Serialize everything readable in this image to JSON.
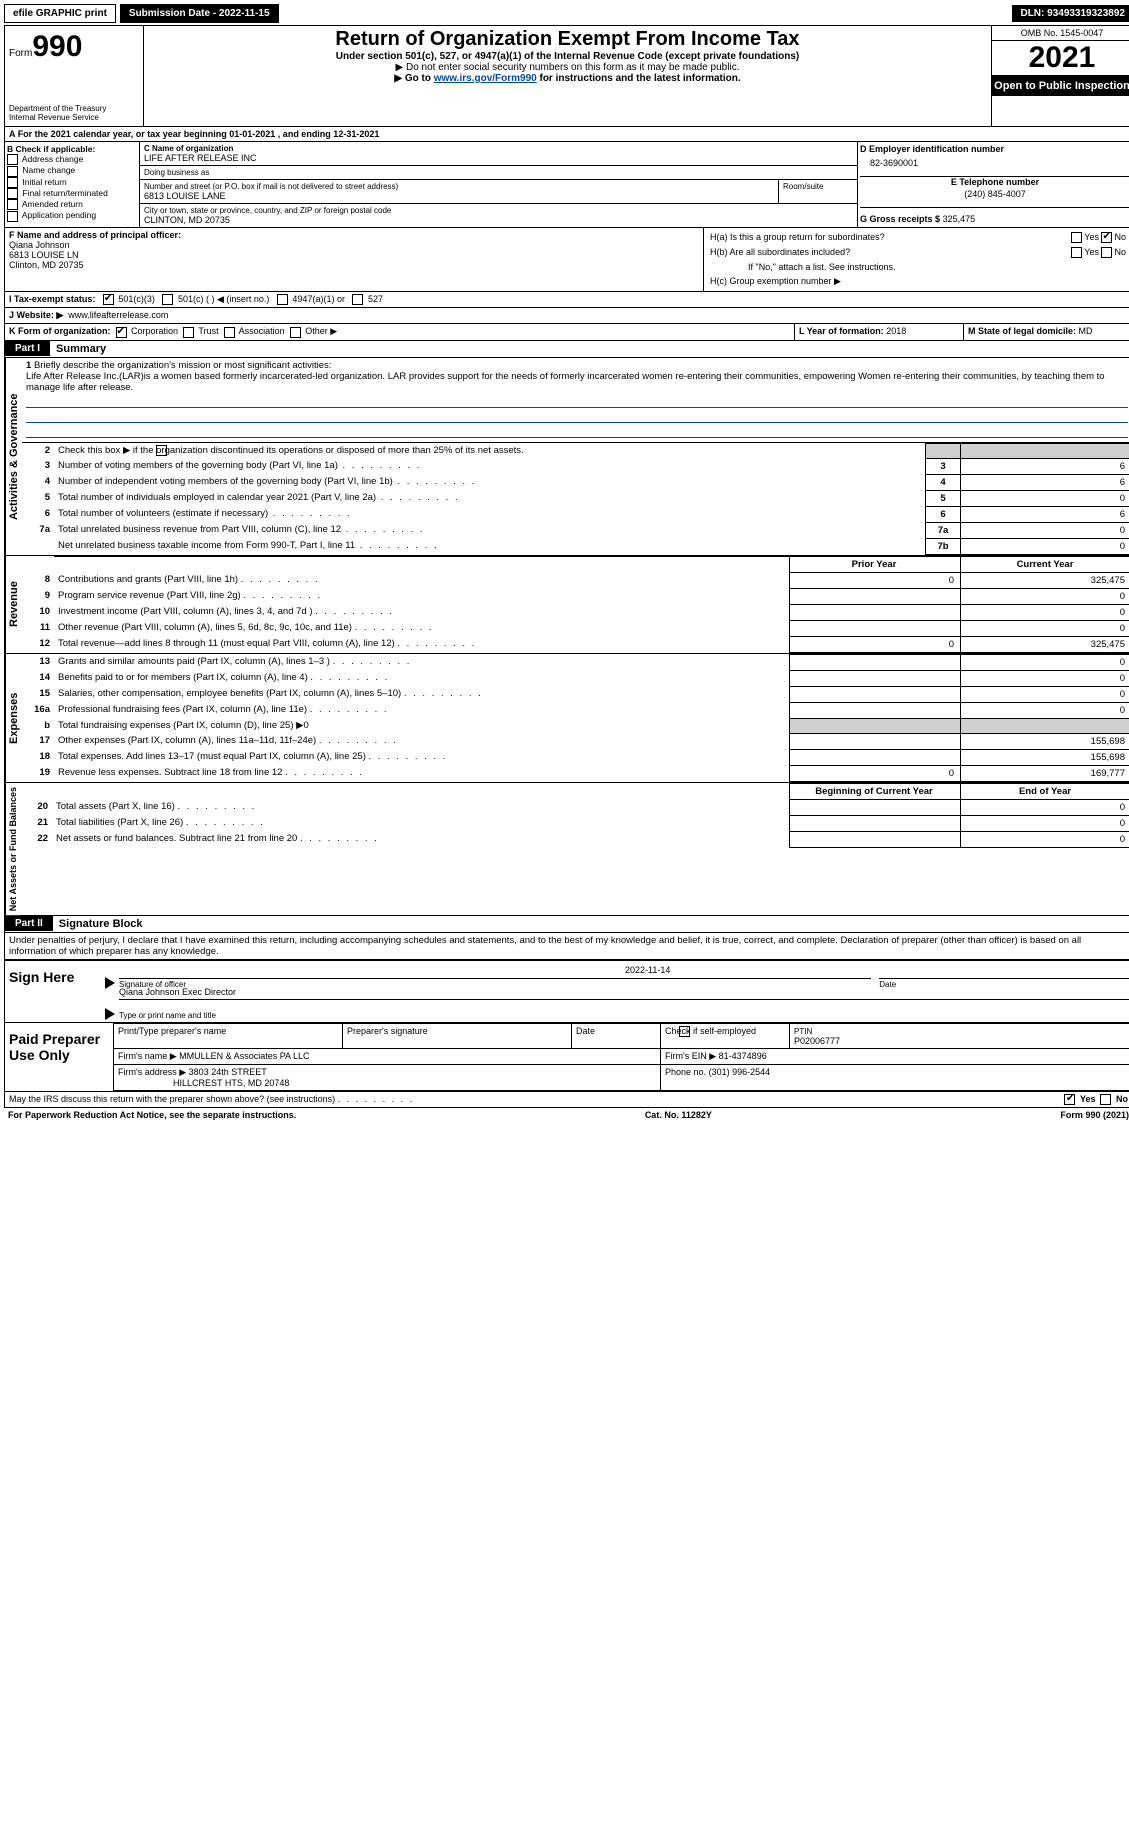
{
  "topbar": {
    "efile": "efile GRAPHIC print",
    "submission": "Submission Date - 2022-11-15",
    "dln": "DLN: 93493319323892"
  },
  "header": {
    "form_label": "Form",
    "form_no": "990",
    "dept1": "Department of the Treasury",
    "dept2": "Internal Revenue Service",
    "title": "Return of Organization Exempt From Income Tax",
    "sub1": "Under section 501(c), 527, or 4947(a)(1) of the Internal Revenue Code (except private foundations)",
    "sub2": "▶ Do not enter social security numbers on this form as it may be made public.",
    "sub3_pre": "▶ Go to ",
    "sub3_link": "www.irs.gov/Form990",
    "sub3_post": " for instructions and the latest information.",
    "omb": "OMB No. 1545-0047",
    "year": "2021",
    "opi": "Open to Public Inspection"
  },
  "rowA": {
    "text": "For the 2021 calendar year, or tax year beginning 01-01-2021    , and ending 12-31-2021",
    "lbl": "A"
  },
  "secB": {
    "hdr": "B Check if applicable:",
    "items": [
      "Address change",
      "Name change",
      "Initial return",
      "Final return/terminated",
      "Amended return",
      "Application pending"
    ],
    "c_name_lbl": "C Name of organization",
    "c_name": "LIFE AFTER RELEASE INC",
    "dba_lbl": "Doing business as",
    "dba": "",
    "street_lbl": "Number and street (or P.O. box if mail is not delivered to street address)",
    "room_lbl": "Room/suite",
    "street": "6813 LOUISE LANE",
    "city_lbl": "City or town, state or province, country, and ZIP or foreign postal code",
    "city": "CLINTON, MD  20735",
    "d_lbl": "D Employer identification number",
    "d_val": "82-3690001",
    "e_lbl": "E Telephone number",
    "e_val": "(240) 845-4007",
    "g_lbl": "G Gross receipts $",
    "g_val": "325,475"
  },
  "secF": {
    "f_lbl": "F  Name and address of principal officer:",
    "f_name": "Qiana Johnson",
    "f_addr1": "6813 LOUISE LN",
    "f_addr2": "Clinton, MD  20735",
    "ha": "H(a)  Is this a group return for subordinates?",
    "hb": "H(b)  Are all subordinates included?",
    "hb2": "If \"No,\" attach a list. See instructions.",
    "hc": "H(c)  Group exemption number ▶",
    "yes": "Yes",
    "no": "No"
  },
  "rowI": {
    "lbl": "I   Tax-exempt status:",
    "o1": "501(c)(3)",
    "o2": "501(c) (  ) ◀ (insert no.)",
    "o3": "4947(a)(1) or",
    "o4": "527"
  },
  "rowJ": {
    "lbl": "J   Website: ▶",
    "val": "www.lifeafterrelease.com"
  },
  "rowK": {
    "lbl": "K Form of organization:",
    "o1": "Corporation",
    "o2": "Trust",
    "o3": "Association",
    "o4": "Other ▶",
    "l_lbl": "L Year of formation:",
    "l_val": "2018",
    "m_lbl": "M State of legal domicile:",
    "m_val": "MD"
  },
  "partI": {
    "hdr": "Part I",
    "title": "Summary",
    "q1_lbl": "1",
    "q1": "Briefly describe the organization's mission or most significant activities:",
    "q1_text": "Life After Release Inc.(LAR)is a women based formerly incarcerated-led organization. LAR provides support for the needs of formerly incarcerated women re-entering their communities, empowering Women re-entering their communities, by teaching them to manage life after release.",
    "q2": "Check this box ▶        if the organization discontinued its operations or disposed of more than 25% of its net assets.",
    "vtab_ag": "Activities & Governance",
    "vtab_rev": "Revenue",
    "vtab_exp": "Expenses",
    "vtab_net": "Net Assets or Fund Balances",
    "col_prior": "Prior Year",
    "col_curr": "Current Year",
    "col_begin": "Beginning of Current Year",
    "col_end": "End of Year",
    "lines_ag": [
      {
        "n": "3",
        "t": "Number of voting members of the governing body (Part VI, line 1a)",
        "box": "3",
        "v": "6"
      },
      {
        "n": "4",
        "t": "Number of independent voting members of the governing body (Part VI, line 1b)",
        "box": "4",
        "v": "6"
      },
      {
        "n": "5",
        "t": "Total number of individuals employed in calendar year 2021 (Part V, line 2a)",
        "box": "5",
        "v": "0"
      },
      {
        "n": "6",
        "t": "Total number of volunteers (estimate if necessary)",
        "box": "6",
        "v": "6"
      },
      {
        "n": "7a",
        "t": "Total unrelated business revenue from Part VIII, column (C), line 12",
        "box": "7a",
        "v": "0"
      },
      {
        "n": "",
        "t": "Net unrelated business taxable income from Form 990-T, Part I, line 11",
        "box": "7b",
        "v": "0"
      }
    ],
    "lines_rev": [
      {
        "n": "8",
        "t": "Contributions and grants (Part VIII, line 1h)",
        "p": "0",
        "c": "325,475"
      },
      {
        "n": "9",
        "t": "Program service revenue (Part VIII, line 2g)",
        "p": "",
        "c": "0"
      },
      {
        "n": "10",
        "t": "Investment income (Part VIII, column (A), lines 3, 4, and 7d )",
        "p": "",
        "c": "0"
      },
      {
        "n": "11",
        "t": "Other revenue (Part VIII, column (A), lines 5, 6d, 8c, 9c, 10c, and 11e)",
        "p": "",
        "c": "0"
      },
      {
        "n": "12",
        "t": "Total revenue—add lines 8 through 11 (must equal Part VIII, column (A), line 12)",
        "p": "0",
        "c": "325,475"
      }
    ],
    "lines_exp": [
      {
        "n": "13",
        "t": "Grants and similar amounts paid (Part IX, column (A), lines 1–3 )",
        "p": "",
        "c": "0"
      },
      {
        "n": "14",
        "t": "Benefits paid to or for members (Part IX, column (A), line 4)",
        "p": "",
        "c": "0"
      },
      {
        "n": "15",
        "t": "Salaries, other compensation, employee benefits (Part IX, column (A), lines 5–10)",
        "p": "",
        "c": "0"
      },
      {
        "n": "16a",
        "t": "Professional fundraising fees (Part IX, column (A), line 11e)",
        "p": "",
        "c": "0"
      },
      {
        "n": "b",
        "t": "Total fundraising expenses (Part IX, column (D), line 25) ▶0",
        "p": "GRAY",
        "c": "GRAY"
      },
      {
        "n": "17",
        "t": "Other expenses (Part IX, column (A), lines 11a–11d, 11f–24e)",
        "p": "",
        "c": "155,698"
      },
      {
        "n": "18",
        "t": "Total expenses. Add lines 13–17 (must equal Part IX, column (A), line 25)",
        "p": "",
        "c": "155,698"
      },
      {
        "n": "19",
        "t": "Revenue less expenses. Subtract line 18 from line 12",
        "p": "0",
        "c": "169,777"
      }
    ],
    "lines_net": [
      {
        "n": "20",
        "t": "Total assets (Part X, line 16)",
        "p": "",
        "c": "0"
      },
      {
        "n": "21",
        "t": "Total liabilities (Part X, line 26)",
        "p": "",
        "c": "0"
      },
      {
        "n": "22",
        "t": "Net assets or fund balances. Subtract line 21 from line 20",
        "p": "",
        "c": "0"
      }
    ]
  },
  "partII": {
    "hdr": "Part II",
    "title": "Signature Block",
    "decl": "Under penalties of perjury, I declare that I have examined this return, including accompanying schedules and statements, and to the best of my knowledge and belief, it is true, correct, and complete. Declaration of preparer (other than officer) is based on all information of which preparer has any knowledge.",
    "sign": "Sign Here",
    "sig_of_officer": "Signature of officer",
    "date": "Date",
    "sig_date": "2022-11-14",
    "officer_name": "Qiana Johnson  Exec Director",
    "type_name": "Type or print name and title",
    "paid": "Paid Preparer Use Only",
    "col_prep_name": "Print/Type preparer's name",
    "col_prep_sig": "Preparer's signature",
    "col_date": "Date",
    "col_check": "Check         if self-employed",
    "col_ptin": "PTIN",
    "ptin": "P02006777",
    "firm_name_lbl": "Firm's name    ▶",
    "firm_name": "MMULLEN & Associates PA LLC",
    "firm_ein_lbl": "Firm's EIN ▶",
    "firm_ein": "81-4374896",
    "firm_addr_lbl": "Firm's address ▶",
    "firm_addr1": "3803 24th STREET",
    "firm_addr2": "HILLCREST HTS, MD  20748",
    "phone_lbl": "Phone no.",
    "phone": "(301) 996-2544",
    "discuss": "May the IRS discuss this return with the preparer shown above? (see instructions)",
    "paperwork": "For Paperwork Reduction Act Notice, see the separate instructions.",
    "cat": "Cat. No. 11282Y",
    "formfoot": "Form 990 (2021)"
  }
}
